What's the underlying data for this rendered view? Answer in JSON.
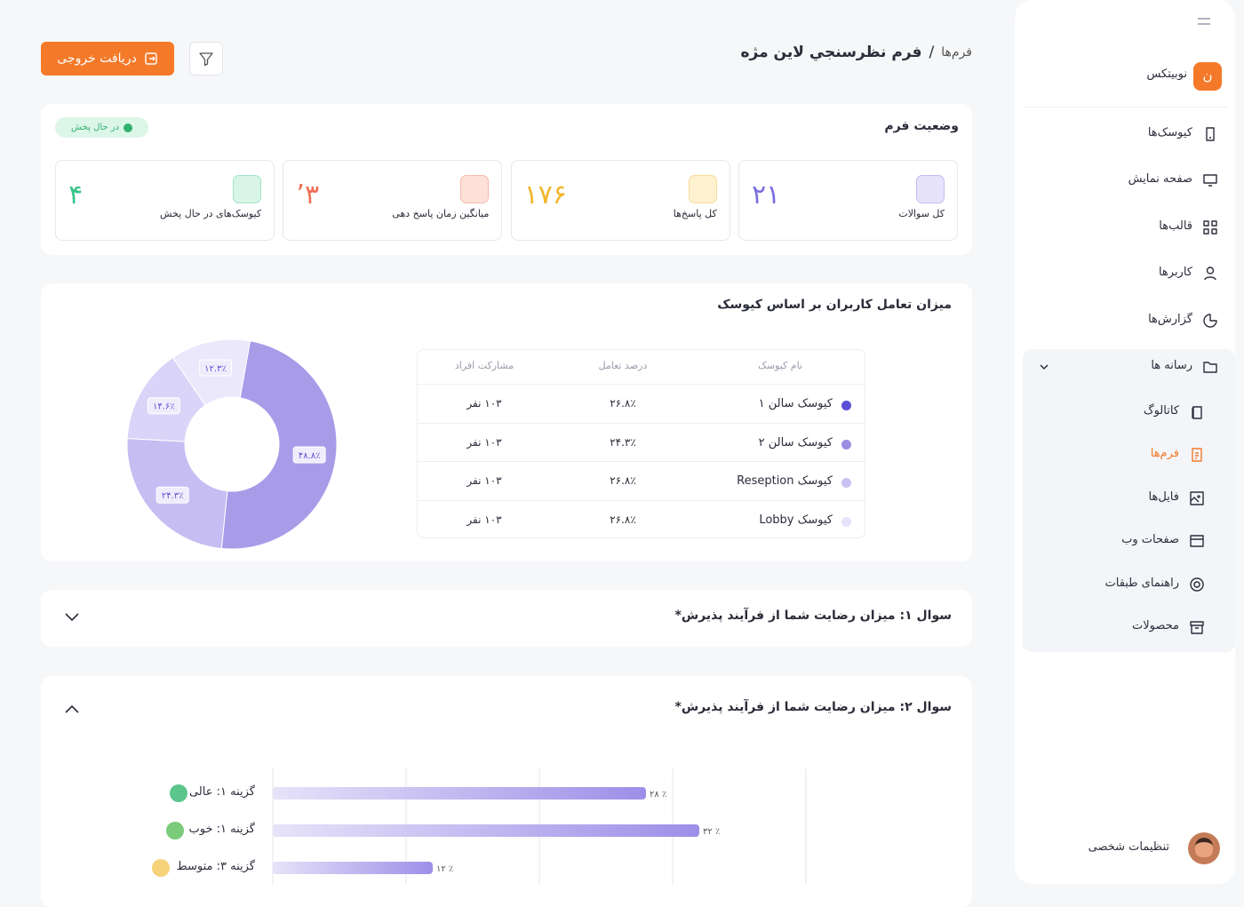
{
  "sidebar": {
    "brand": "نوبیتکس",
    "logo": "ن",
    "items": [
      "کیوسک‌ها",
      "صفحه نمایش",
      "قالب‌ها",
      "کاربرها",
      "گزارش‌ها"
    ],
    "group": {
      "label": "رسانه ها",
      "items": [
        "کاتالوگ",
        "فرم‌ها",
        "فایل‌ها",
        "صفحات وب",
        "راهنمای طبقات",
        "محصولات"
      ]
    },
    "settings": "تنظیمات شخصی"
  },
  "header": {
    "breadcrumb": "فرم‌ها",
    "separator": "/",
    "title": "فرم نظرسنجي لاين مژه",
    "export_button": "دریافت خروجی"
  },
  "status": {
    "title": "وضعیت فرم",
    "badge": "در حال پخش",
    "stats": [
      {
        "label": "کل سوالات",
        "value": "۲۱"
      },
      {
        "label": "کل پاسخ‌ها",
        "value": "۱۷۶"
      },
      {
        "label": "میانگین زمان پاسخ دهی",
        "value": "۳’"
      },
      {
        "label": "کیوسک‌های در حال پخش",
        "value": "۴"
      }
    ]
  },
  "engagement": {
    "title": "میزان تعامل کاربران بر اساس کیوسک",
    "table": {
      "columns": [
        "نام کیوسک",
        "درصد تعامل",
        "مشارکت افراد"
      ],
      "rows": [
        [
          "کیوسک سالن ۱",
          "۲۶.۸٪",
          "۱۰۳ نفر"
        ],
        [
          "کیوسک سالن ۲",
          "۲۴.۳٪",
          "۱۰۳ نفر"
        ],
        [
          "کیوسک Reseption",
          "۲۶.۸٪",
          "۱۰۳ نفر"
        ],
        [
          "کیوسک Lobby",
          "۲۶.۸٪",
          "۱۰۳ نفر"
        ]
      ]
    }
  },
  "questions": [
    {
      "title": "سوال ۱: میزان رضایت شما از فرآیند پذیرش*"
    },
    {
      "title": "سوال ۲: میزان رضایت شما از فرآیند پذیرش*"
    }
  ],
  "chart_data": [
    {
      "type": "pie",
      "donut": true,
      "values": [
        48.8,
        24.3,
        14.6,
        12.3
      ],
      "value_labels": [
        "۴۸.۸٪",
        "۲۴.۳٪",
        "۱۴.۶٪",
        "۱۲.۳٪"
      ],
      "colors": [
        "#a89ce9",
        "#c6bdf3",
        "#dad4f8",
        "#ebe8fc"
      ]
    },
    {
      "type": "bar",
      "orientation": "horizontal",
      "categories": [
        "گزینه ۱: عالی",
        "گزینه ۱: خوب",
        "گزینه ۳: متوسط"
      ],
      "values": [
        28,
        32,
        12
      ],
      "value_labels": [
        "۲۸ ٪",
        "۳۲ ٪",
        "۱۲ ٪"
      ],
      "color": "#9d8fe8",
      "xlim": [
        0,
        40
      ],
      "xticks": [
        0,
        10,
        20,
        30,
        40
      ],
      "grid": true
    }
  ]
}
